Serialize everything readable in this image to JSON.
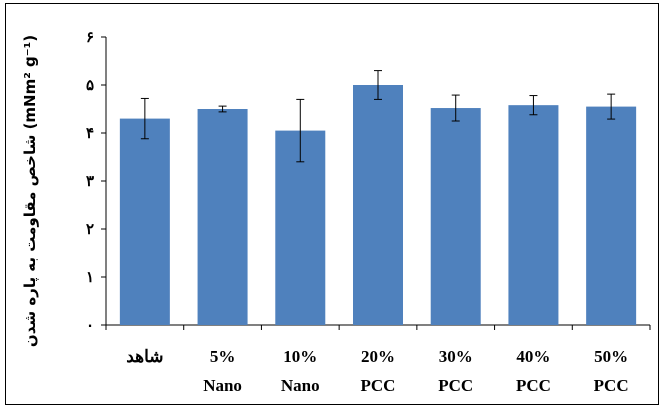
{
  "chart_data": {
    "type": "bar",
    "ylabel": "شاخص مقاومت به پاره شدن (mNm² g⁻¹)",
    "ylim": [
      0,
      6
    ],
    "yticks": [
      {
        "value": 0,
        "label": "۰"
      },
      {
        "value": 1,
        "label": "۱"
      },
      {
        "value": 2,
        "label": "۲"
      },
      {
        "value": 3,
        "label": "۳"
      },
      {
        "value": 4,
        "label": "۴"
      },
      {
        "value": 5,
        "label": "۵"
      },
      {
        "value": 6,
        "label": "۶"
      }
    ],
    "categories": [
      [
        "شاهد"
      ],
      [
        "5%",
        "Nano"
      ],
      [
        "10%",
        "Nano"
      ],
      [
        "20%",
        "PCC"
      ],
      [
        "30%",
        "PCC"
      ],
      [
        "40%",
        "PCC"
      ],
      [
        "50%",
        "PCC"
      ]
    ],
    "values": [
      4.3,
      4.5,
      4.05,
      5.0,
      4.52,
      4.58,
      4.55
    ],
    "errors": [
      0.42,
      0.06,
      0.65,
      0.3,
      0.27,
      0.2,
      0.26
    ],
    "bar_color": "#4f81bd",
    "grid": false,
    "legend": "none"
  }
}
